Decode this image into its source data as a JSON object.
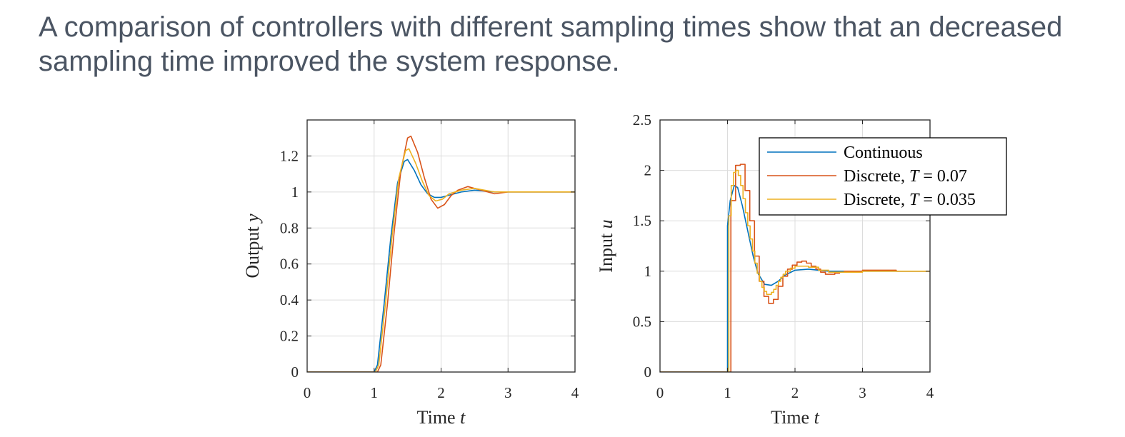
{
  "slide": {
    "title_line1": "A comparison of controllers with different sampling times show that an decreased",
    "title_line2": "sampling time improved the system response."
  },
  "colors": {
    "continuous": "#0072BD",
    "discrete_007": "#D95319",
    "discrete_0035": "#EDB120"
  },
  "chart_data": [
    {
      "type": "line",
      "xlabel": "Time t",
      "ylabel": "Output y",
      "xlim": [
        0,
        4
      ],
      "ylim": [
        0,
        1.4
      ],
      "xticks": [
        "0",
        "1",
        "2",
        "3",
        "4"
      ],
      "yticks": [
        "0",
        "0.2",
        "0.4",
        "0.6",
        "0.8",
        "1",
        "1.2"
      ],
      "grid": true,
      "series": [
        {
          "name": "Continuous",
          "x": [
            0,
            1.0,
            1.05,
            1.15,
            1.25,
            1.35,
            1.45,
            1.5,
            1.6,
            1.7,
            1.8,
            1.9,
            2.0,
            2.1,
            2.3,
            2.5,
            2.8,
            3.2,
            4.0
          ],
          "y": [
            0,
            0,
            0.04,
            0.38,
            0.75,
            1.05,
            1.17,
            1.18,
            1.12,
            1.04,
            0.99,
            0.97,
            0.97,
            0.98,
            1.0,
            1.01,
            1.0,
            1.0,
            1.0
          ]
        },
        {
          "name": "Discrete, T = 0.07",
          "x": [
            0,
            1.05,
            1.1,
            1.2,
            1.3,
            1.4,
            1.5,
            1.55,
            1.65,
            1.75,
            1.85,
            1.95,
            2.05,
            2.15,
            2.25,
            2.4,
            2.6,
            2.8,
            3.0,
            4.0
          ],
          "y": [
            0,
            0,
            0.04,
            0.38,
            0.78,
            1.12,
            1.3,
            1.31,
            1.22,
            1.08,
            0.96,
            0.91,
            0.93,
            0.98,
            1.01,
            1.03,
            1.01,
            0.99,
            1.0,
            1.0
          ]
        },
        {
          "name": "Discrete, T = 0.035",
          "x": [
            0,
            1.02,
            1.07,
            1.17,
            1.27,
            1.37,
            1.47,
            1.52,
            1.62,
            1.72,
            1.82,
            1.92,
            2.02,
            2.12,
            2.3,
            2.5,
            2.8,
            3.2,
            4.0
          ],
          "y": [
            0,
            0,
            0.04,
            0.38,
            0.76,
            1.08,
            1.23,
            1.24,
            1.16,
            1.06,
            0.98,
            0.95,
            0.96,
            0.99,
            1.01,
            1.02,
            1.0,
            1.0,
            1.0
          ]
        }
      ]
    },
    {
      "type": "line",
      "xlabel": "Time t",
      "ylabel": "Input u",
      "xlim": [
        0,
        4
      ],
      "ylim": [
        0,
        2.5
      ],
      "xticks": [
        "0",
        "1",
        "2",
        "3",
        "4"
      ],
      "yticks": [
        "0",
        "0.5",
        "1",
        "1.5",
        "2",
        "2.5"
      ],
      "grid": true,
      "legend": {
        "position": "top-right",
        "entries": [
          "Continuous",
          "Discrete, T = 0.07",
          "Discrete, T = 0.035"
        ]
      },
      "series": [
        {
          "name": "Continuous",
          "step": false,
          "x": [
            0,
            1.0,
            1.0,
            1.04,
            1.1,
            1.15,
            1.22,
            1.3,
            1.38,
            1.45,
            1.55,
            1.65,
            1.75,
            1.85,
            2.0,
            2.2,
            2.5,
            3.0,
            4.0
          ],
          "y": [
            0,
            0,
            1.45,
            1.7,
            1.85,
            1.83,
            1.65,
            1.4,
            1.15,
            0.98,
            0.87,
            0.86,
            0.9,
            0.96,
            1.01,
            1.02,
            1.0,
            1.0,
            1.0
          ]
        },
        {
          "name": "Discrete, T = 0.07",
          "step": true,
          "x": [
            0,
            1.05,
            1.12,
            1.19,
            1.26,
            1.33,
            1.4,
            1.47,
            1.54,
            1.61,
            1.68,
            1.75,
            1.82,
            1.89,
            1.96,
            2.03,
            2.1,
            2.17,
            2.24,
            2.31,
            2.38,
            2.45,
            2.52,
            2.59,
            2.66,
            2.73,
            2.8,
            3.0,
            3.5,
            4.0
          ],
          "y": [
            0,
            1.7,
            2.05,
            2.06,
            1.8,
            1.5,
            1.15,
            0.9,
            0.75,
            0.68,
            0.72,
            0.85,
            0.95,
            1.02,
            1.06,
            1.09,
            1.1,
            1.08,
            1.05,
            1.02,
            0.99,
            0.97,
            0.97,
            0.98,
            0.99,
            1.0,
            1.0,
            1.01,
            1.0,
            1.0
          ]
        },
        {
          "name": "Discrete, T = 0.035",
          "step": true,
          "x": [
            0,
            1.02,
            1.055,
            1.09,
            1.125,
            1.16,
            1.195,
            1.23,
            1.265,
            1.3,
            1.335,
            1.37,
            1.405,
            1.44,
            1.475,
            1.51,
            1.545,
            1.58,
            1.615,
            1.65,
            1.685,
            1.72,
            1.755,
            1.79,
            1.825,
            1.86,
            1.93,
            2.0,
            2.1,
            2.2,
            2.35,
            2.5,
            2.7,
            3.0,
            4.0
          ],
          "y": [
            0,
            1.55,
            1.85,
            1.98,
            2.0,
            1.95,
            1.85,
            1.72,
            1.58,
            1.45,
            1.32,
            1.2,
            1.08,
            0.98,
            0.9,
            0.84,
            0.8,
            0.77,
            0.77,
            0.79,
            0.82,
            0.86,
            0.9,
            0.94,
            0.97,
            1.0,
            1.03,
            1.05,
            1.05,
            1.04,
            1.01,
            0.99,
            0.99,
            1.0,
            1.0
          ]
        }
      ]
    }
  ]
}
